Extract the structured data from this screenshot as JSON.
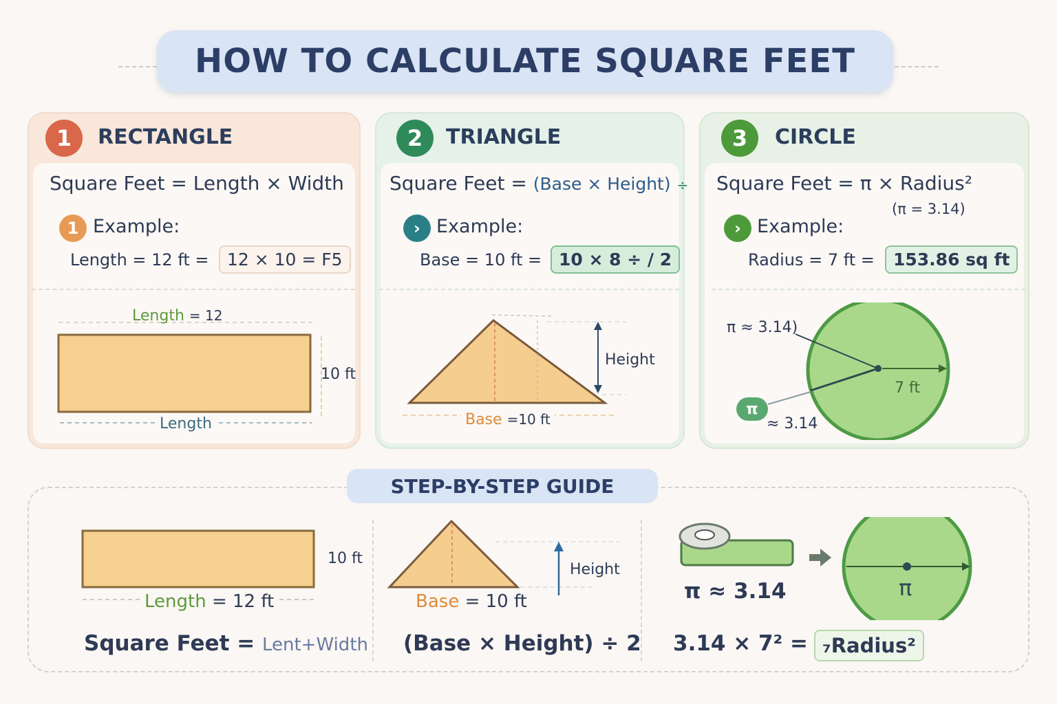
{
  "title": "HOW TO CALCULATE SQUARE FEET",
  "colors": {
    "rect_fill": "#f5d08e",
    "triangle_fill": "#f5cd8f",
    "circle_fill": "#a9d88a",
    "circle_stroke": "#4e9a45",
    "badge1": "#d9674a",
    "badge2": "#2f8a5a",
    "badge3": "#4d9a3a"
  },
  "cards": [
    {
      "number": "1",
      "heading": "RECTANGLE",
      "formula": "Square Feet = Length × Width",
      "example_label": "Example:",
      "example_badge": "1",
      "example_left": "Length = 12 ft  =",
      "example_result": "12 × 10 = F5",
      "diagram": {
        "top_label_word": "Length",
        "top_label_value": "= 12",
        "side_label": "10 ft",
        "bottom_label": "Length"
      }
    },
    {
      "number": "2",
      "heading": "TRIANGLE",
      "formula_prefix": "Square Feet =",
      "formula_paren": "(Base × Height)",
      "formula_suffix": "÷",
      "example_label": "Example:",
      "example_left": "Base = 10 ft  =",
      "example_result": "10 × 8 ÷ / 2",
      "diagram": {
        "height_label": "Height",
        "base_word": "Base",
        "base_value": "=10 ft"
      }
    },
    {
      "number": "3",
      "heading": "CIRCLE",
      "formula": "Square Feet = π × Radius²",
      "pi_note": "(π = 3.14)",
      "example_label": "Example:",
      "example_left": "Radius = 7 ft  =",
      "example_result": "153.86 sq ft",
      "diagram": {
        "pi_label": "π ≈ 3.14)",
        "pi_badge": "π",
        "approx": "≈ 3.14",
        "radius_label": "7 ft"
      }
    }
  ],
  "guide": {
    "title": "STEP-BY-STEP GUIDE",
    "rect": {
      "side": "10 ft",
      "length_word": "Length",
      "length_value": "= 12 ft",
      "formula": "Square Feet = ",
      "formula_tail": "Lent+Width"
    },
    "triangle": {
      "height": "Height",
      "base_word": "Base",
      "base_value": "= 10 ft",
      "formula": "(Base × Height) ÷ 2"
    },
    "circle": {
      "pi": "π ≈ 3.14",
      "pi_symbol": "π",
      "formula": "3.14 × 7² =",
      "result": "₇Radius²"
    }
  }
}
